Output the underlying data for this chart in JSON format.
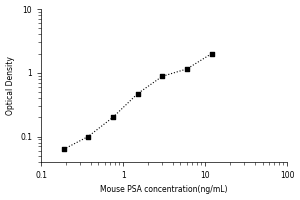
{
  "title": "",
  "xlabel": "Mouse PSA concentration(ng/mL)",
  "ylabel": "Optical Density",
  "x_data": [
    0.188,
    0.375,
    0.75,
    1.5,
    3.0,
    6.0,
    12.0
  ],
  "y_data": [
    0.063,
    0.1,
    0.2,
    0.47,
    0.88,
    1.15,
    2.0
  ],
  "xlim": [
    0.1,
    100
  ],
  "ylim": [
    0.04,
    10
  ],
  "x_ticks": [
    0.1,
    1,
    10,
    100
  ],
  "x_tick_labels": [
    "0.1",
    "1",
    "10",
    "100"
  ],
  "y_ticks": [
    0.1,
    1,
    10
  ],
  "y_tick_labels": [
    "0.1",
    "1",
    "10"
  ],
  "marker": "s",
  "marker_color": "black",
  "marker_size": 3.5,
  "line_style": ":",
  "line_color": "black",
  "line_width": 0.8,
  "background_color": "#ffffff",
  "label_fontsize": 5.5,
  "tick_fontsize": 5.5
}
